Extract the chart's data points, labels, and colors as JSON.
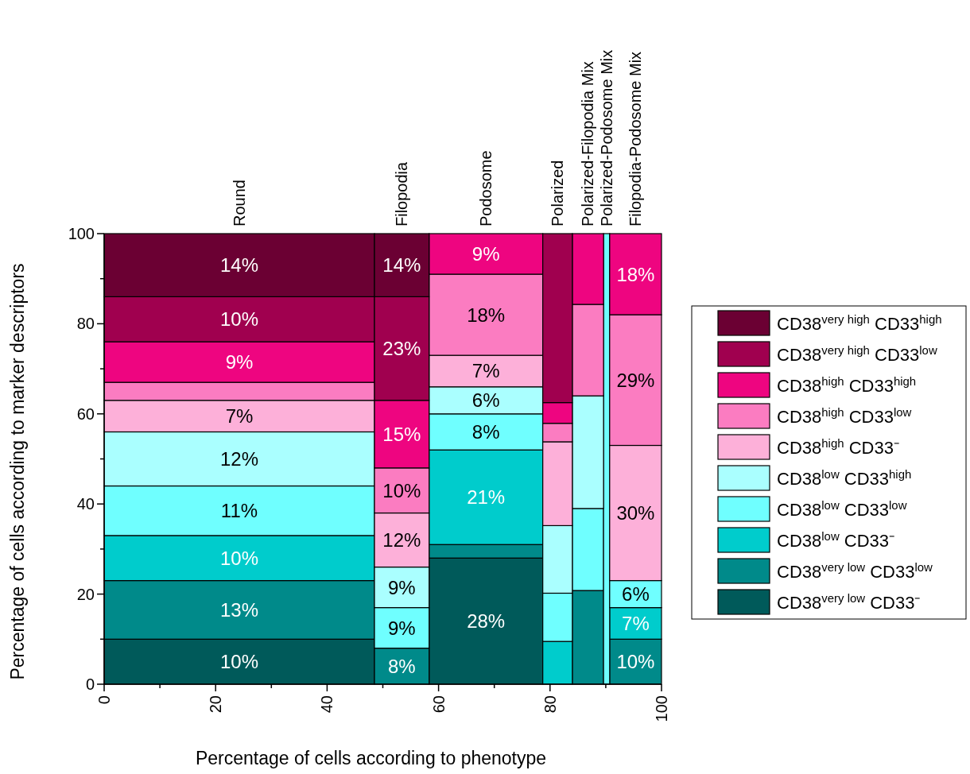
{
  "chart_data": {
    "type": "bar",
    "stacked": true,
    "xlabel": "Percentage of cells according to phenotype",
    "ylabel": "Percentage of cells according to marker descriptors",
    "x": [
      24.25,
      53.4,
      68.5,
      81.35,
      86.8,
      90.15,
      95.35
    ],
    "xlim": [
      0,
      100
    ],
    "xticks": [
      0,
      {
        "value": 10,
        "label": null
      },
      20,
      {
        "value": 30,
        "label": null
      },
      40,
      {
        "value": 50,
        "label": null
      },
      60,
      {
        "value": 70,
        "label": null
      },
      80,
      {
        "value": 90,
        "label": null
      },
      100
    ],
    "ylim": [
      0,
      100
    ],
    "yticks": [
      0,
      {
        "value": 10,
        "label": null
      },
      20,
      {
        "value": 30,
        "label": null
      },
      40,
      {
        "value": 50,
        "label": null
      },
      60,
      {
        "value": 70,
        "label": null
      },
      80,
      {
        "value": 90,
        "label": null
      },
      100
    ],
    "legend": "right",
    "grid": false,
    "annotations": [
      {
        "text": "Round",
        "x": 24.25,
        "y": 100
      },
      {
        "text": "Filopodia",
        "x": 53.4,
        "y": 100
      },
      {
        "text": "Podosome",
        "x": 68.5,
        "y": 100
      },
      {
        "text": "Polarized",
        "x": 81.35,
        "y": 100
      },
      {
        "text": "Polarized-Filopodia Mix",
        "x": 86.8,
        "y": 100
      },
      {
        "text": "Polarized-Podosome Mix",
        "x": 90.15,
        "y": 100
      },
      {
        "text": "Filopodia-Podosome Mix",
        "x": 95.35,
        "y": 100
      }
    ],
    "series": [
      {
        "name": "CD38$^{very low}$ CD33⁻",
        "color": "#005a5a",
        "values": [
          10,
          0,
          28,
          0,
          0,
          0,
          0
        ],
        "value_labels": [
          "10%",
          null,
          "28%",
          null,
          null,
          null,
          null
        ]
      },
      {
        "name": "CD38$^{very low}$ CD33$^{low}$",
        "color": "#008a8a",
        "values": [
          13,
          8,
          3,
          0,
          20.8,
          0,
          10
        ],
        "value_labels": [
          "13%",
          "8%",
          null,
          null,
          null,
          null,
          "10%"
        ]
      },
      {
        "name": "CD38$^{low}$ CD33⁻",
        "color": "#00cccc",
        "values": [
          10,
          0,
          21,
          9.5,
          0,
          0,
          7
        ],
        "value_labels": [
          "10%",
          null,
          "21%",
          null,
          null,
          null,
          "7%"
        ]
      },
      {
        "name": "CD38$^{low}$ CD33$^{low}$",
        "color": "#6fffff",
        "values": [
          11,
          9,
          8,
          10.7,
          18.2,
          100,
          6
        ],
        "value_labels": [
          "11%",
          "9%",
          "8%",
          null,
          null,
          null,
          "6%"
        ]
      },
      {
        "name": "CD38$^{low}$ CD33$^{high}$",
        "color": "#aaffff",
        "values": [
          12,
          9,
          6,
          15,
          25,
          0,
          0
        ],
        "value_labels": [
          "12%",
          "9%",
          "6%",
          null,
          null,
          null,
          null
        ]
      },
      {
        "name": "CD38$^{high}$ CD33⁻",
        "color": "#fdb0d9",
        "values": [
          7,
          12,
          7,
          18.6,
          0,
          0,
          30
        ],
        "value_labels": [
          "7%",
          "12%",
          "7%",
          null,
          null,
          null,
          "30%"
        ]
      },
      {
        "name": "CD38$^{high}$ CD33$^{low}$",
        "color": "#fb7cc1",
        "values": [
          4,
          10,
          18,
          4.1,
          20.3,
          0,
          29
        ],
        "value_labels": [
          null,
          "10%",
          "18%",
          null,
          null,
          null,
          "29%"
        ]
      },
      {
        "name": "CD38$^{high}$ CD33$^{high}$",
        "color": "#ee0580",
        "values": [
          9,
          15,
          9,
          4.6,
          15.7,
          0,
          18
        ],
        "value_labels": [
          "9%",
          "15%",
          "9%",
          null,
          null,
          null,
          "18%"
        ]
      },
      {
        "name": "CD38$^{very high}$ CD33$^{low}$",
        "color": "#a0004f",
        "values": [
          10,
          23,
          0,
          37.5,
          0,
          0,
          0
        ],
        "value_labels": [
          "10%",
          "23%",
          null,
          null,
          null,
          null,
          null
        ]
      },
      {
        "name": "CD38$^{very high}$ CD33$^{high}$",
        "color": "#6b0033",
        "values": [
          14,
          14,
          0,
          0,
          0,
          0,
          0
        ],
        "value_labels": [
          "14%",
          "14%",
          null,
          null,
          null,
          null,
          null
        ]
      }
    ]
  }
}
